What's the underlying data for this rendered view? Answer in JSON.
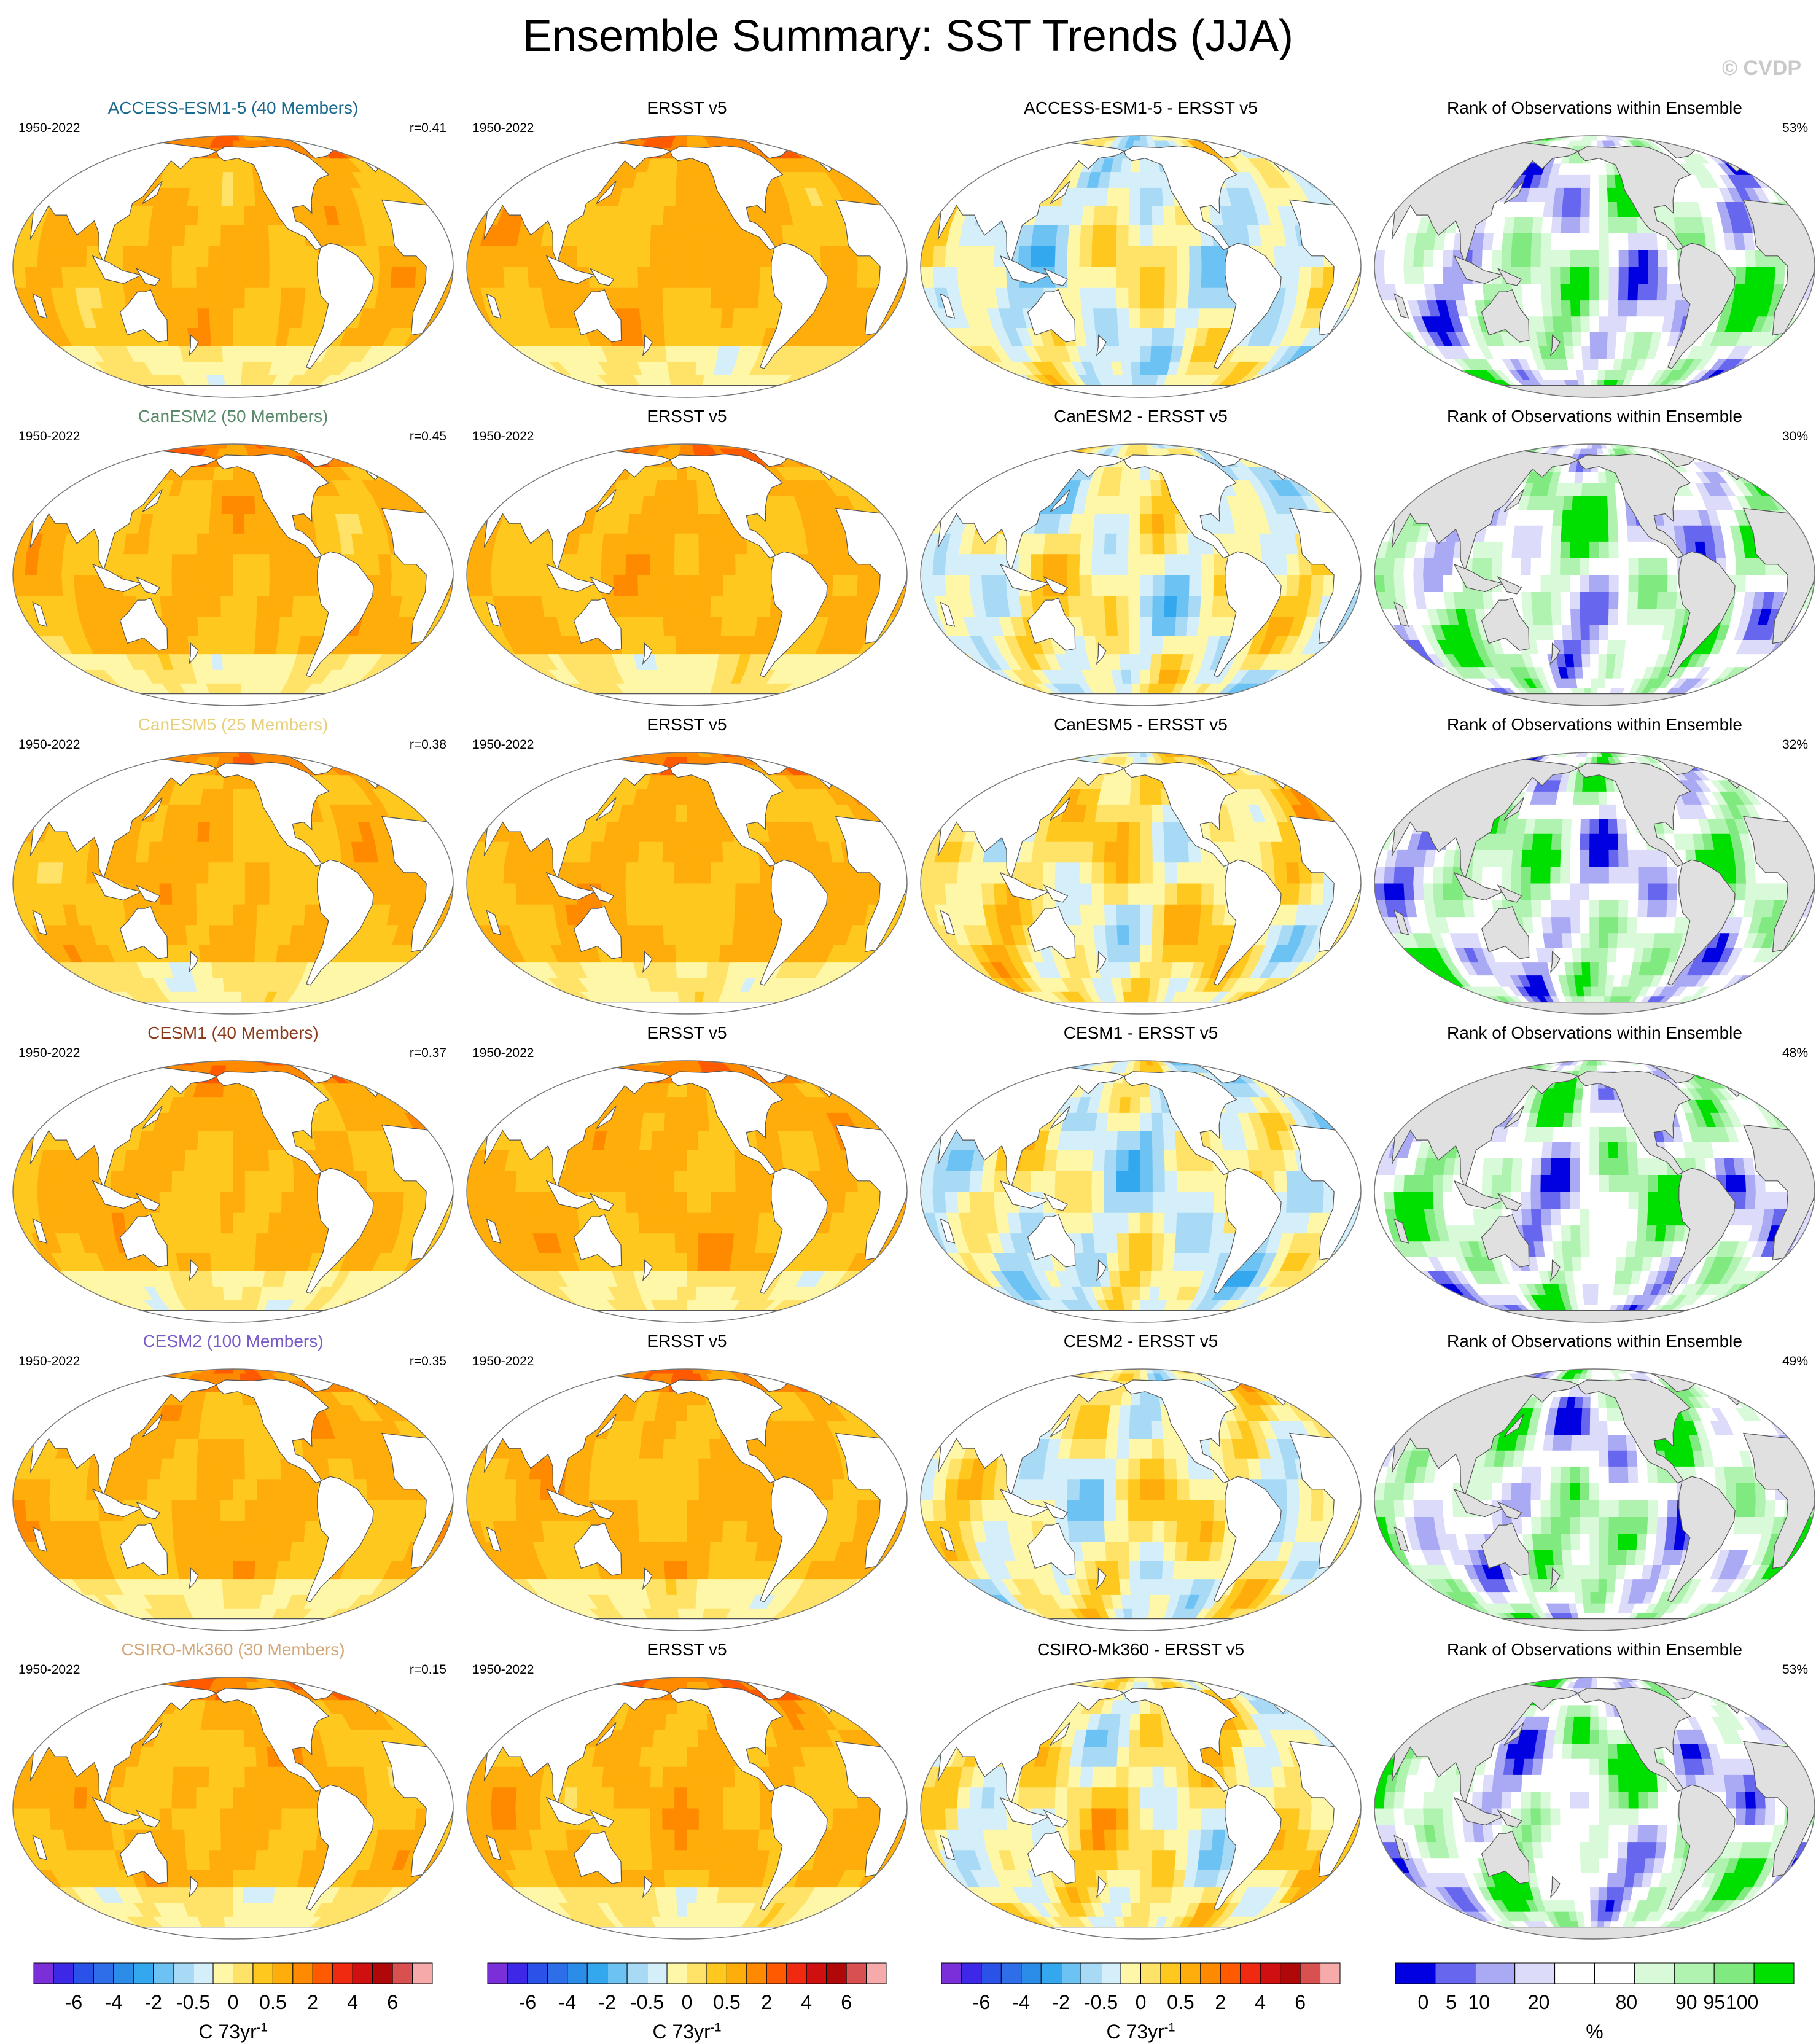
{
  "title": "Ensemble Summary: SST Trends (JJA)",
  "credit": "© CVDP",
  "obs_name": "ERSST v5",
  "period": "1950-2022",
  "rank_title": "Rank of Observations within Ensemble",
  "rows": [
    {
      "model": "ACCESS-ESM1-5 (40 Members)",
      "model_color": "#1a6b8f",
      "r": "r=0.41",
      "diff": "ACCESS-ESM1-5 - ERSST v5",
      "rank_pct": "53%"
    },
    {
      "model": "CanESM2 (50 Members)",
      "model_color": "#5a8a6a",
      "r": "r=0.45",
      "diff": "CanESM2 - ERSST v5",
      "rank_pct": "30%"
    },
    {
      "model": "CanESM5 (25 Members)",
      "model_color": "#e8d07a",
      "r": "r=0.38",
      "diff": "CanESM5 - ERSST v5",
      "rank_pct": "32%"
    },
    {
      "model": "CESM1 (40 Members)",
      "model_color": "#8a3a1a",
      "r": "r=0.37",
      "diff": "CESM1 - ERSST v5",
      "rank_pct": "48%"
    },
    {
      "model": "CESM2 (100 Members)",
      "model_color": "#7a5cc8",
      "r": "r=0.35",
      "diff": "CESM2 - ERSST v5",
      "rank_pct": "49%"
    },
    {
      "model": "CSIRO-Mk360 (30 Members)",
      "model_color": "#d4a878",
      "r": "r=0.15",
      "diff": "CSIRO-Mk360 - ERSST v5",
      "rank_pct": "53%"
    }
  ],
  "colorbars": {
    "trend": {
      "colors": [
        "#7b2fd8",
        "#3c28e6",
        "#2a52e8",
        "#2e6ee8",
        "#2c8de8",
        "#34a8ee",
        "#6cc2f2",
        "#a8daf6",
        "#d4eefa",
        "#fff7a8",
        "#ffe268",
        "#ffc81e",
        "#ffad0a",
        "#ff8a00",
        "#ff5a00",
        "#f02a10",
        "#d01010",
        "#b00808",
        "#d85050",
        "#f6aaaa"
      ],
      "ticks": [
        "-6",
        "-4",
        "-2",
        "-0.5",
        "0",
        "0.5",
        "2",
        "4",
        "6"
      ],
      "tick_pos": [
        2,
        4,
        6,
        8,
        10,
        12,
        14,
        16,
        18
      ],
      "units": "C 73yr",
      "units_exp": "-1"
    },
    "rank": {
      "colors": [
        "#0000e0",
        "#6666ee",
        "#aaaaf4",
        "#dcdcfa",
        "#ffffff",
        "#ffffff",
        "#d8fad8",
        "#b0f2b0",
        "#80ea80",
        "#00e000"
      ],
      "ticks": [
        "0",
        "5",
        "10",
        "20",
        "80",
        "90",
        "95",
        "100"
      ],
      "tick_pos": [
        0.7,
        1.4,
        2.1,
        3.6,
        5.8,
        7.3,
        8.0,
        8.7
      ],
      "units": "%"
    }
  }
}
